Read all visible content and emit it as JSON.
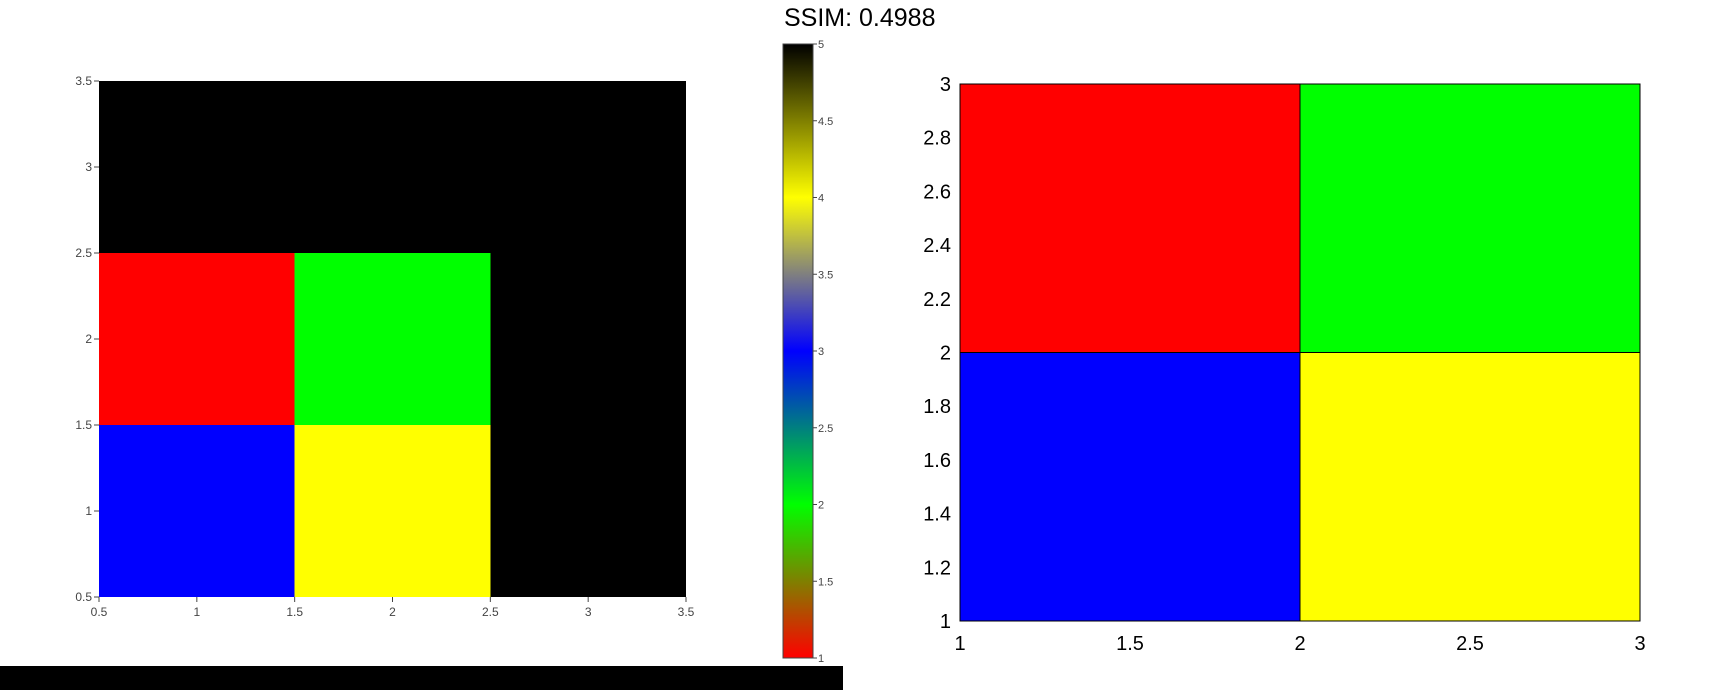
{
  "title": "SSIM: 0.4988",
  "chart_data": [
    {
      "type": "heatmap",
      "title": "",
      "xlabel": "",
      "ylabel": "",
      "xlim": [
        0.5,
        3.5
      ],
      "ylim": [
        0.5,
        3.5
      ],
      "x_ticks": [
        "0.5",
        "1",
        "1.5",
        "2",
        "2.5",
        "3",
        "3.5"
      ],
      "y_ticks": [
        "0.5",
        "1",
        "1.5",
        "2",
        "2.5",
        "3",
        "3.5"
      ],
      "x_centers": [
        1,
        2,
        3
      ],
      "y_centers": [
        1,
        2,
        3
      ],
      "z": [
        [
          3,
          4,
          5
        ],
        [
          1,
          2,
          5
        ],
        [
          5,
          5,
          5
        ]
      ],
      "colorscale": [
        [
          1,
          "#ff0000"
        ],
        [
          2,
          "#00ff00"
        ],
        [
          3,
          "#0000ff"
        ],
        [
          4,
          "#ffff00"
        ],
        [
          5,
          "#000000"
        ]
      ],
      "colorbar": {
        "range": [
          1,
          5
        ],
        "ticks": [
          "1",
          "1.5",
          "2",
          "2.5",
          "3",
          "3.5",
          "4",
          "4.5",
          "5"
        ]
      }
    },
    {
      "type": "heatmap",
      "title": "",
      "xlabel": "",
      "ylabel": "",
      "xlim": [
        1,
        3
      ],
      "ylim": [
        1,
        3
      ],
      "x_ticks": [
        "1",
        "1.5",
        "2",
        "2.5",
        "3"
      ],
      "y_ticks": [
        "1",
        "1.2",
        "1.4",
        "1.6",
        "1.8",
        "2",
        "2.2",
        "2.4",
        "2.6",
        "2.8",
        "3"
      ],
      "cells": [
        {
          "x": [
            1,
            2
          ],
          "y": [
            1,
            2
          ],
          "color": "#0000ff"
        },
        {
          "x": [
            2,
            3
          ],
          "y": [
            1,
            2
          ],
          "color": "#ffff00"
        },
        {
          "x": [
            1,
            2
          ],
          "y": [
            2,
            3
          ],
          "color": "#ff0000"
        },
        {
          "x": [
            2,
            3
          ],
          "y": [
            2,
            3
          ],
          "color": "#00ff00"
        }
      ]
    }
  ]
}
